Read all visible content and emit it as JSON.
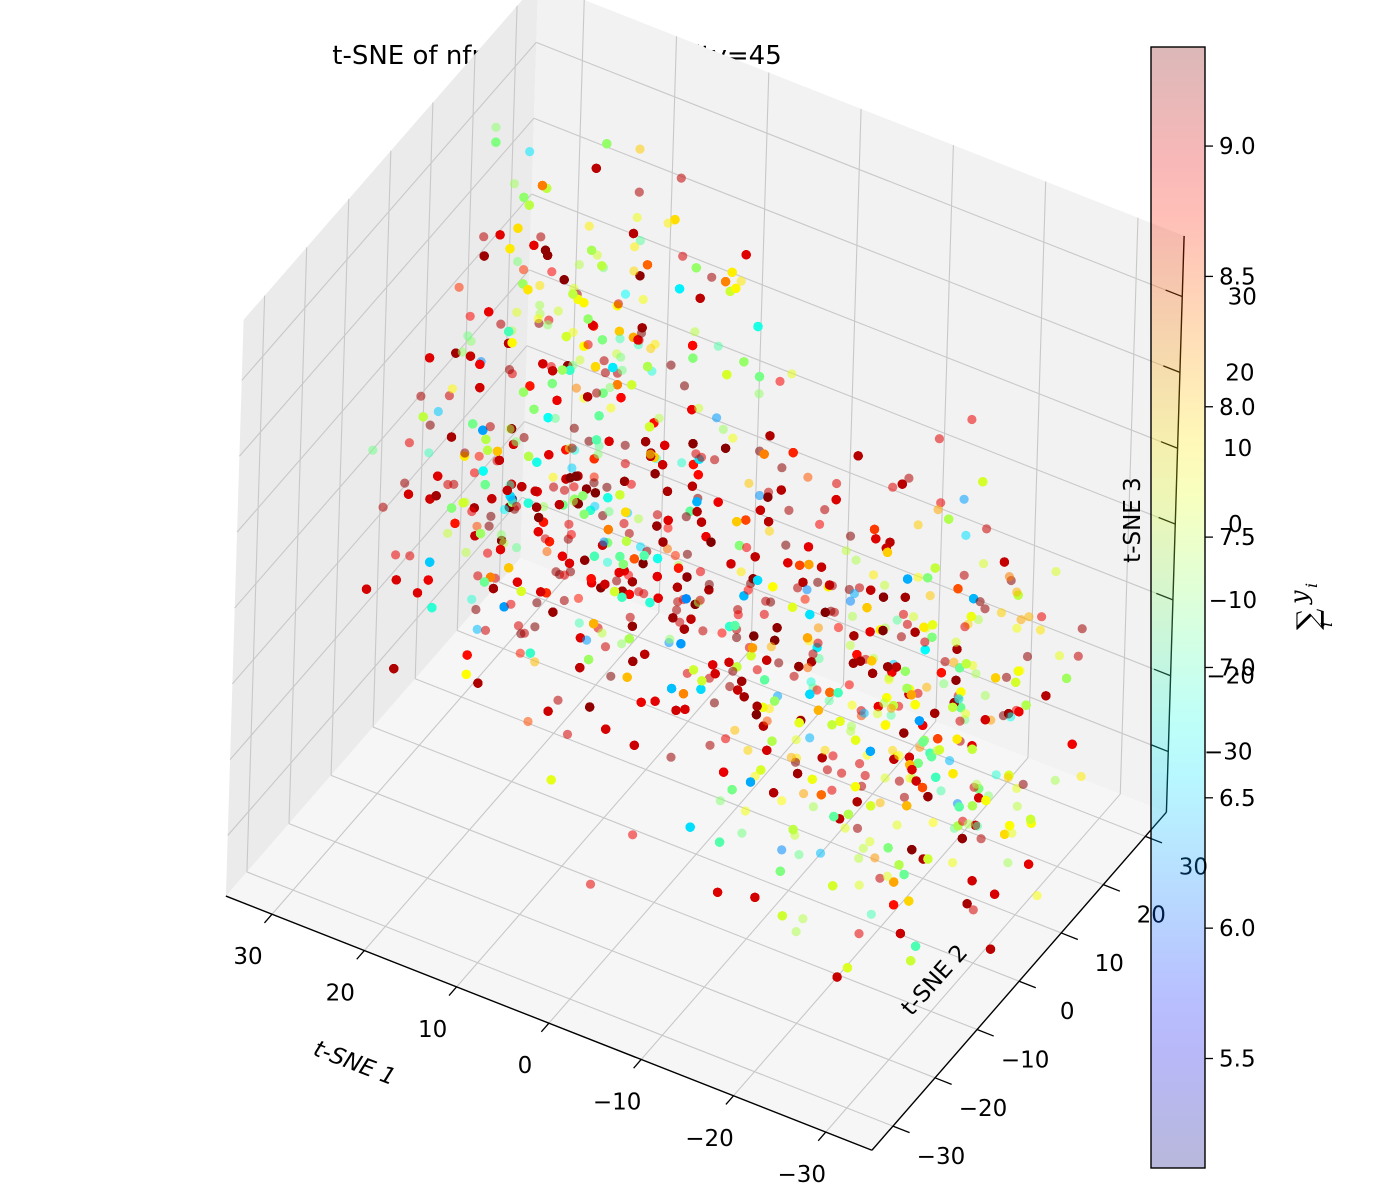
{
  "chart_data": {
    "type": "scatter",
    "projection": "3d",
    "title": "t-SNE of nfp=3 with Perplexity=45",
    "xlabel": "t-SNE 1",
    "ylabel": "t-SNE 2",
    "zlabel": "t-SNE 3",
    "xlim": [
      -35,
      35
    ],
    "ylim": [
      -35,
      35
    ],
    "zlim": [
      -38,
      38
    ],
    "x_ticks": [
      "−30",
      "−20",
      "−10",
      "0",
      "10",
      "20",
      "30"
    ],
    "y_ticks": [
      "−30",
      "−20",
      "−10",
      "0",
      "10",
      "20",
      "30"
    ],
    "z_ticks": [
      "−30",
      "−20",
      "−10",
      "0",
      "10",
      "20",
      "30"
    ],
    "grid": true,
    "colormap": "jet",
    "marker_alpha": 0.25,
    "color_range": [
      5.08,
      9.38
    ],
    "colorbar": {
      "label": "∑ᵢ yᵢ",
      "label_sum": "∑",
      "label_sub": "i",
      "label_var": "y",
      "label_var_sub": "i",
      "ticks": [
        "5.5",
        "6.0",
        "6.5",
        "7.0",
        "7.5",
        "8.0",
        "8.5",
        "9.0"
      ],
      "tick_values": [
        5.5,
        6.0,
        6.5,
        7.0,
        7.5,
        8.0,
        8.5,
        9.0
      ]
    },
    "series": [
      {
        "points_description_note": null,
        "cluster_points": [
          {
            "x": -5,
            "y": 0,
            "z": 0,
            "c": 9.2
          },
          {
            "x": 20,
            "y": 10,
            "z": -5,
            "c": 7.2
          },
          {
            "x": -25,
            "y": -10,
            "z": -10,
            "c": 7.4
          },
          {
            "x": 5,
            "y": -25,
            "z": 15,
            "c": 9.1
          },
          {
            "x": 25,
            "y": 25,
            "z": 5,
            "c": 7.6
          },
          {
            "x": -15,
            "y": 20,
            "z": -20,
            "c": 7.8
          }
        ]
      }
    ]
  }
}
